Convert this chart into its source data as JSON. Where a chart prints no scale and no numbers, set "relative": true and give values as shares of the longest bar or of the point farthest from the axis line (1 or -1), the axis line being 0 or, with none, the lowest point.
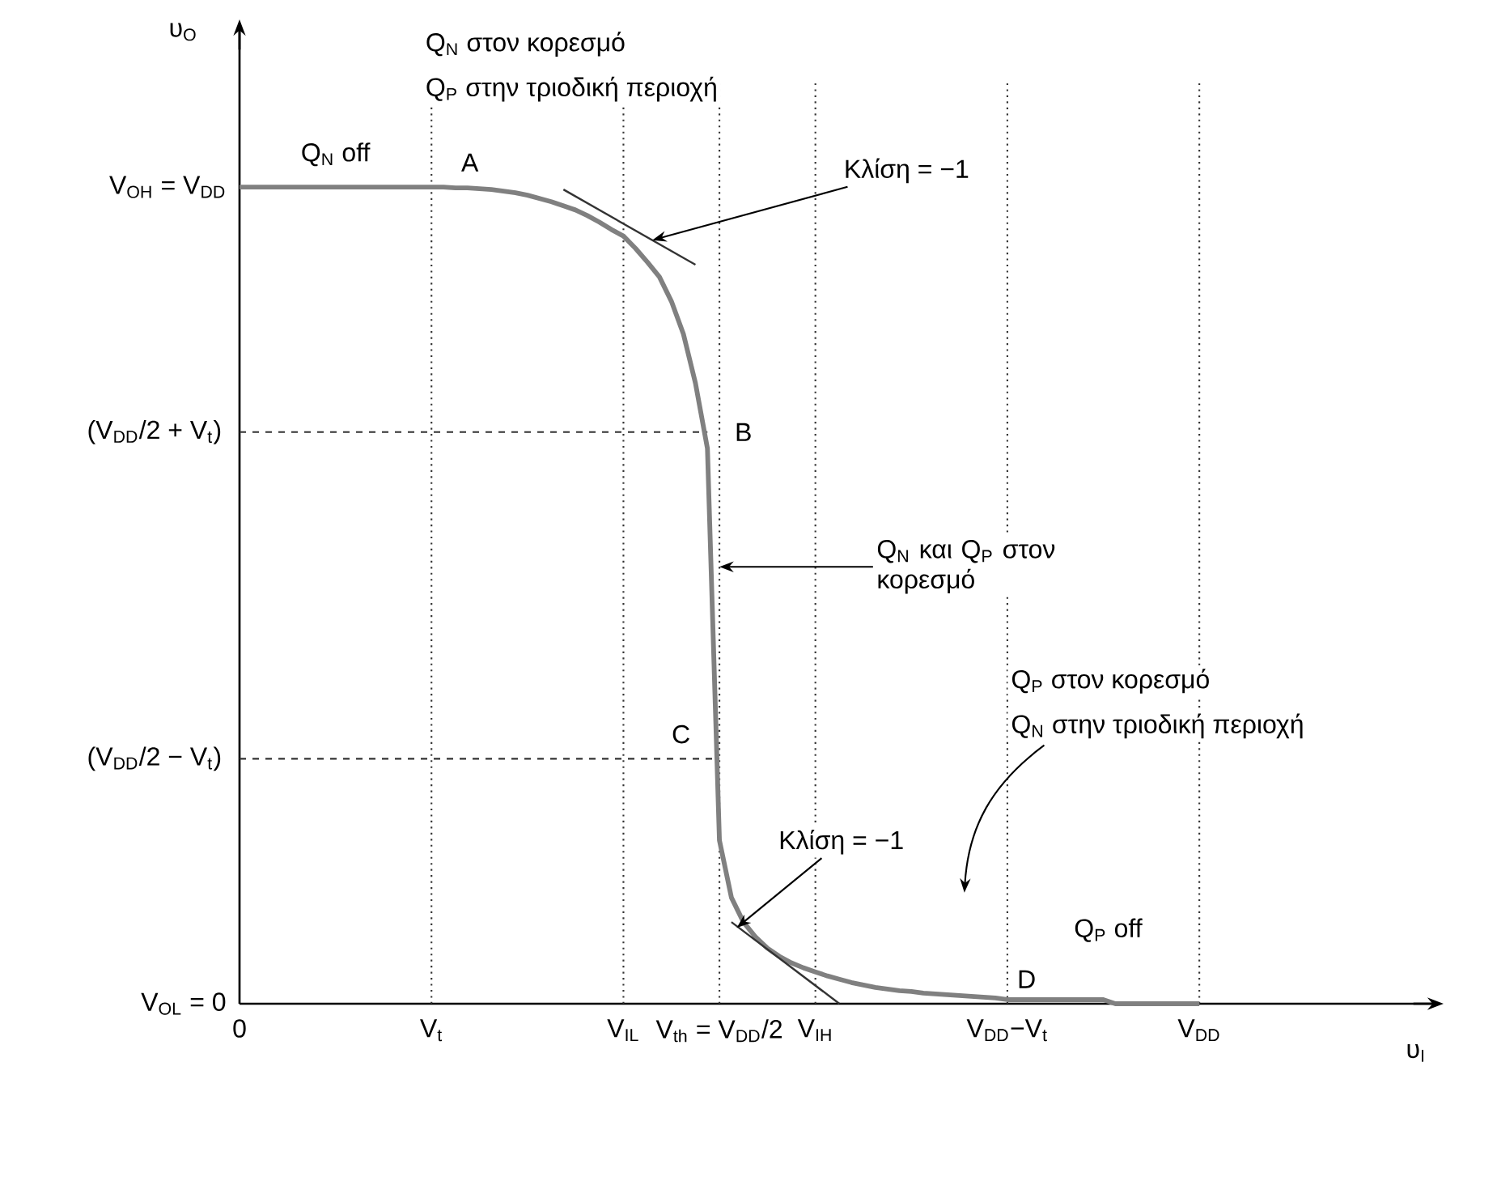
{
  "chart_data": {
    "type": "line",
    "relative": true,
    "categories": [
      "0",
      null,
      null,
      null,
      null,
      null,
      null,
      null,
      null,
      null,
      null,
      null,
      null,
      null,
      null,
      null,
      "V$_{t}$",
      null,
      null,
      null,
      null,
      null,
      null,
      null,
      null,
      null,
      null,
      null,
      null,
      null,
      null,
      null,
      "V$_{IL}$",
      null,
      null,
      null,
      null,
      null,
      null,
      null,
      "V$_{th}$ = V$_{DD}$/2",
      null,
      null,
      null,
      null,
      null,
      null,
      null,
      "V$_{IH}$",
      null,
      null,
      null,
      null,
      null,
      null,
      null,
      null,
      null,
      null,
      null,
      null,
      null,
      null,
      null,
      "V$_{DD}$−V$_{t}$",
      null,
      null,
      null,
      null,
      null,
      null,
      null,
      null,
      null,
      null,
      null,
      null,
      null,
      null,
      null,
      "V$_{DD}$"
    ],
    "series": [
      {
        "color": "#808080",
        "values": [
          1,
          1,
          1,
          1,
          1,
          1,
          1,
          1,
          1,
          1,
          1,
          1,
          1,
          1,
          1,
          1,
          1,
          1,
          0.999,
          0.999,
          0.998,
          0.997,
          0.995,
          0.993,
          0.99,
          0.986,
          0.982,
          0.977,
          0.972,
          0.965,
          0.957,
          0.948,
          0.94,
          0.925,
          0.908,
          0.89,
          0.86,
          0.82,
          0.76,
          0.68,
          0.2,
          0.13,
          0.1,
          0.082,
          0.068,
          0.058,
          0.05,
          0.044,
          0.039,
          0.034,
          0.03,
          0.026,
          0.023,
          0.02,
          0.018,
          0.016,
          0.015,
          0.013,
          0.012,
          0.011,
          0.01,
          0.009,
          0.008,
          0.007,
          0.005,
          0.005,
          0.005,
          0.005,
          0.005,
          0.005,
          0.005,
          0.005,
          0.005,
          0,
          0,
          0,
          0,
          0,
          0,
          0,
          0
        ]
      },
      {
        "color": "#333333",
        "values": [
          null,
          null,
          null,
          null,
          null,
          null,
          null,
          null,
          null,
          null,
          null,
          null,
          null,
          null,
          null,
          null,
          null,
          null,
          null,
          null,
          null,
          null,
          null,
          null,
          null,
          null,
          null,
          0.997,
          null,
          null,
          null,
          null,
          null,
          null,
          null,
          null,
          null,
          null,
          0.905,
          null,
          null,
          null,
          null,
          null,
          null,
          null,
          null,
          null,
          null,
          null,
          null,
          null,
          null,
          null,
          null,
          null,
          null,
          null,
          null,
          null,
          null,
          null,
          null,
          null,
          null,
          null,
          null,
          null,
          null,
          null,
          null,
          null,
          null,
          null,
          null,
          null,
          null,
          null,
          null,
          null,
          null
        ]
      },
      {
        "color": "#333333",
        "values": [
          null,
          null,
          null,
          null,
          null,
          null,
          null,
          null,
          null,
          null,
          null,
          null,
          null,
          null,
          null,
          null,
          null,
          null,
          null,
          null,
          null,
          null,
          null,
          null,
          null,
          null,
          null,
          null,
          null,
          null,
          null,
          null,
          null,
          null,
          null,
          null,
          null,
          null,
          null,
          null,
          null,
          0.1,
          null,
          null,
          null,
          null,
          null,
          null,
          null,
          null,
          0.0,
          null,
          null,
          null,
          null,
          null,
          null,
          null,
          null,
          null,
          null,
          null,
          null,
          null,
          null,
          null,
          null,
          null,
          null,
          null,
          null,
          null,
          null,
          null,
          null,
          null,
          null,
          null,
          null,
          null,
          null
        ]
      }
    ],
    "line_style": "solid",
    "grid": "x",
    "ref_lines": [
      {
        "axis": "y",
        "value": 0.7,
        "label": "(V$_{DD}$/2 + V$_{t}$)",
        "color": "#333333",
        "line_style": "dashed"
      },
      {
        "axis": "y",
        "value": 0.3,
        "label": "(V$_{DD}$/2 − V$_{t}$)",
        "color": "#333333",
        "line_style": "dashed"
      }
    ],
    "annotations": [
      "Q$_{N}$ στον κορεσμό",
      "Q$_{P}$ στην τριοδική περιοχή",
      "Q$_{N}$ off",
      "A",
      "Κλίση = −1",
      "B",
      "Q$_{N}$ και Q$_{P}$ στον κορεσμό",
      "C",
      "Q$_{P}$ στον κορεσμό",
      "Q$_{N}$ στην τριοδική περιοχή",
      "Κλίση = −1",
      "Q$_{P}$ off",
      "D",
      "υ$_{O}$",
      "υ$_{I}$",
      "V$_{OH}$ = V$_{DD}$",
      "V$_{OL}$ = 0"
    ]
  }
}
